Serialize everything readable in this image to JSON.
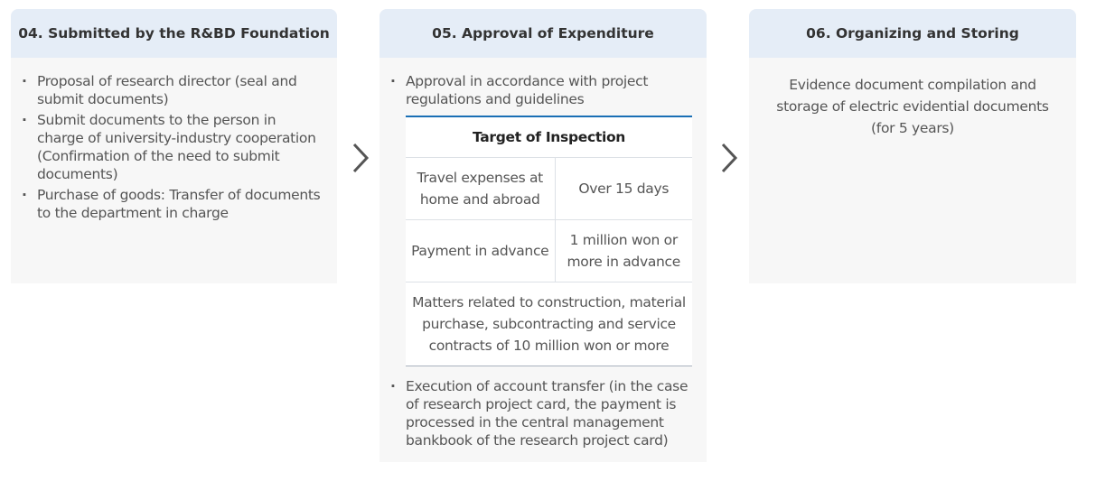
{
  "steps": [
    {
      "title": "04. Submitted by the R&BD Foundation",
      "items": [
        "Proposal of research director (seal and submit documents)",
        "Submit documents to the person in charge of university-industry cooperation (Confirmation of the need to submit documents)",
        "Purchase of goods: Transfer of documents to the department in charge"
      ]
    },
    {
      "title": "05. Approval of Expenditure",
      "items_before": [
        "Approval in accordance with project regulations and guidelines"
      ],
      "table": {
        "header": "Target of Inspection",
        "rows": [
          [
            "Travel expenses at home and abroad",
            "Over 15 days"
          ],
          [
            "Payment in advance",
            "1 million won or more in advance"
          ]
        ],
        "full_row": "Matters related to construction, material purchase, subcontracting and service contracts of 10 million won or more"
      },
      "items_after": [
        "Execution of account transfer (in the case of research project card, the payment is processed in the central management bankbook of the research project card)"
      ]
    },
    {
      "title": "06. Organizing and Storing",
      "text": "Evidence document compilation and storage of electric evidential documents",
      "note": "(for 5 years)"
    }
  ],
  "colors": {
    "header_bg": "#e5edf7",
    "body_bg": "#f7f7f7",
    "accent": "#1a6fb5"
  },
  "icons": [
    "chevron-right-icon",
    "chevron-right-icon"
  ]
}
